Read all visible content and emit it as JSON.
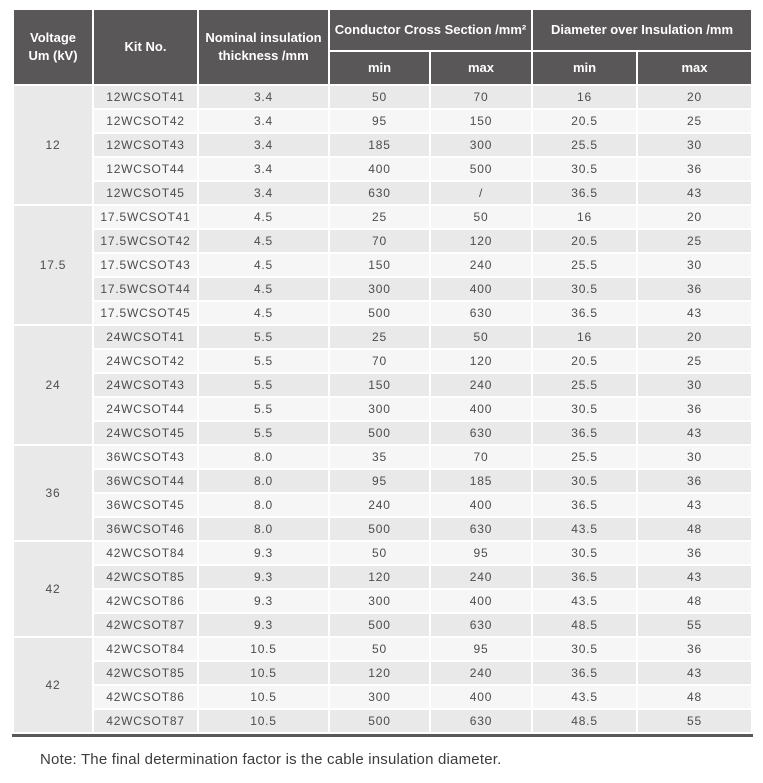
{
  "page": {
    "note": "Note: The final determination factor is the cable insulation diameter."
  },
  "table": {
    "header": {
      "voltage": "Voltage\nUm (kV)",
      "kit_no": "Kit No.",
      "thickness": "Nominal insulation\nthickness /mm",
      "conductor_cross_section": "Conductor Cross Section /mm²",
      "diameter_over_insulation": "Diameter over Insulation /mm",
      "min": "min",
      "max": "max"
    },
    "colors": {
      "header_bg": "#595757",
      "row_stripe_dark": "#e9e9e9",
      "row_stripe_light": "#f6f6f6",
      "bottom_border": "#595757"
    },
    "groups": [
      {
        "voltage": "12",
        "rows": [
          {
            "kit": "12WCSOT41",
            "thickness": "3.4",
            "ccs_min": "50",
            "ccs_max": "70",
            "doi_min": "16",
            "doi_max": "20"
          },
          {
            "kit": "12WCSOT42",
            "thickness": "3.4",
            "ccs_min": "95",
            "ccs_max": "150",
            "doi_min": "20.5",
            "doi_max": "25"
          },
          {
            "kit": "12WCSOT43",
            "thickness": "3.4",
            "ccs_min": "185",
            "ccs_max": "300",
            "doi_min": "25.5",
            "doi_max": "30"
          },
          {
            "kit": "12WCSOT44",
            "thickness": "3.4",
            "ccs_min": "400",
            "ccs_max": "500",
            "doi_min": "30.5",
            "doi_max": "36"
          },
          {
            "kit": "12WCSOT45",
            "thickness": "3.4",
            "ccs_min": "630",
            "ccs_max": "/",
            "doi_min": "36.5",
            "doi_max": "43"
          }
        ]
      },
      {
        "voltage": "17.5",
        "rows": [
          {
            "kit": "17.5WCSOT41",
            "thickness": "4.5",
            "ccs_min": "25",
            "ccs_max": "50",
            "doi_min": "16",
            "doi_max": "20"
          },
          {
            "kit": "17.5WCSOT42",
            "thickness": "4.5",
            "ccs_min": "70",
            "ccs_max": "120",
            "doi_min": "20.5",
            "doi_max": "25"
          },
          {
            "kit": "17.5WCSOT43",
            "thickness": "4.5",
            "ccs_min": "150",
            "ccs_max": "240",
            "doi_min": "25.5",
            "doi_max": "30"
          },
          {
            "kit": "17.5WCSOT44",
            "thickness": "4.5",
            "ccs_min": "300",
            "ccs_max": "400",
            "doi_min": "30.5",
            "doi_max": "36"
          },
          {
            "kit": "17.5WCSOT45",
            "thickness": "4.5",
            "ccs_min": "500",
            "ccs_max": "630",
            "doi_min": "36.5",
            "doi_max": "43"
          }
        ]
      },
      {
        "voltage": "24",
        "rows": [
          {
            "kit": "24WCSOT41",
            "thickness": "5.5",
            "ccs_min": "25",
            "ccs_max": "50",
            "doi_min": "16",
            "doi_max": "20"
          },
          {
            "kit": "24WCSOT42",
            "thickness": "5.5",
            "ccs_min": "70",
            "ccs_max": "120",
            "doi_min": "20.5",
            "doi_max": "25"
          },
          {
            "kit": "24WCSOT43",
            "thickness": "5.5",
            "ccs_min": "150",
            "ccs_max": "240",
            "doi_min": "25.5",
            "doi_max": "30"
          },
          {
            "kit": "24WCSOT44",
            "thickness": "5.5",
            "ccs_min": "300",
            "ccs_max": "400",
            "doi_min": "30.5",
            "doi_max": "36"
          },
          {
            "kit": "24WCSOT45",
            "thickness": "5.5",
            "ccs_min": "500",
            "ccs_max": "630",
            "doi_min": "36.5",
            "doi_max": "43"
          }
        ]
      },
      {
        "voltage": "36",
        "rows": [
          {
            "kit": "36WCSOT43",
            "thickness": "8.0",
            "ccs_min": "35",
            "ccs_max": "70",
            "doi_min": "25.5",
            "doi_max": "30"
          },
          {
            "kit": "36WCSOT44",
            "thickness": "8.0",
            "ccs_min": "95",
            "ccs_max": "185",
            "doi_min": "30.5",
            "doi_max": "36"
          },
          {
            "kit": "36WCSOT45",
            "thickness": "8.0",
            "ccs_min": "240",
            "ccs_max": "400",
            "doi_min": "36.5",
            "doi_max": "43"
          },
          {
            "kit": "36WCSOT46",
            "thickness": "8.0",
            "ccs_min": "500",
            "ccs_max": "630",
            "doi_min": "43.5",
            "doi_max": "48"
          }
        ]
      },
      {
        "voltage": "42",
        "rows": [
          {
            "kit": "42WCSOT84",
            "thickness": "9.3",
            "ccs_min": "50",
            "ccs_max": "95",
            "doi_min": "30.5",
            "doi_max": "36"
          },
          {
            "kit": "42WCSOT85",
            "thickness": "9.3",
            "ccs_min": "120",
            "ccs_max": "240",
            "doi_min": "36.5",
            "doi_max": "43"
          },
          {
            "kit": "42WCSOT86",
            "thickness": "9.3",
            "ccs_min": "300",
            "ccs_max": "400",
            "doi_min": "43.5",
            "doi_max": "48"
          },
          {
            "kit": "42WCSOT87",
            "thickness": "9.3",
            "ccs_min": "500",
            "ccs_max": "630",
            "doi_min": "48.5",
            "doi_max": "55"
          }
        ]
      },
      {
        "voltage": "42",
        "rows": [
          {
            "kit": "42WCSOT84",
            "thickness": "10.5",
            "ccs_min": "50",
            "ccs_max": "95",
            "doi_min": "30.5",
            "doi_max": "36"
          },
          {
            "kit": "42WCSOT85",
            "thickness": "10.5",
            "ccs_min": "120",
            "ccs_max": "240",
            "doi_min": "36.5",
            "doi_max": "43"
          },
          {
            "kit": "42WCSOT86",
            "thickness": "10.5",
            "ccs_min": "300",
            "ccs_max": "400",
            "doi_min": "43.5",
            "doi_max": "48"
          },
          {
            "kit": "42WCSOT87",
            "thickness": "10.5",
            "ccs_min": "500",
            "ccs_max": "630",
            "doi_min": "48.5",
            "doi_max": "55"
          }
        ]
      }
    ]
  }
}
